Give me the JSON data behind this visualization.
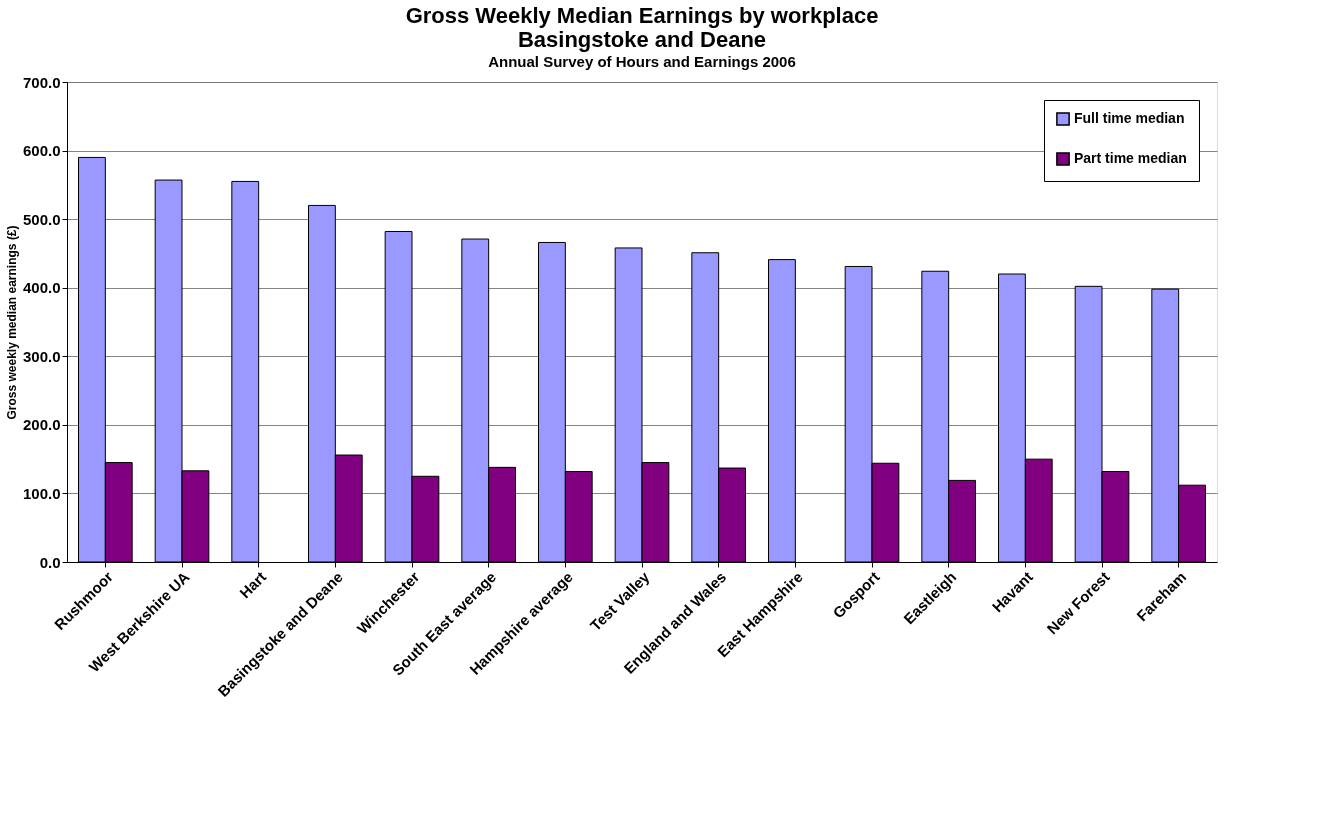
{
  "chart_data": {
    "type": "bar",
    "title": "Gross Weekly Median Earnings by workplace\nBasingstoke and Deane",
    "subtitle": "Annual Survey of Hours and Earnings 2006",
    "ylabel": "Gross weekly median earnings (£)",
    "categories": [
      "Rushmoor",
      "West Berkshire UA",
      "Hart",
      "Basingstoke and Deane",
      "Winchester",
      "South East average",
      "Hampshire average",
      "Test Valley",
      "England and Wales",
      "East Hampshire",
      "Gosport",
      "Eastleigh",
      "Havant",
      "New Forest",
      "Fareham"
    ],
    "series": [
      {
        "name": "Full time median",
        "color": "#9999ff",
        "values": [
          590,
          557,
          555,
          520,
          482,
          471,
          466,
          458,
          451,
          441,
          431,
          424,
          420,
          402,
          398
        ]
      },
      {
        "name": "Part time median",
        "color": "#800080",
        "values": [
          145,
          133,
          null,
          156,
          125,
          138,
          132,
          145,
          137,
          null,
          144,
          119,
          150,
          132,
          112
        ]
      }
    ],
    "ylim": [
      0,
      700
    ],
    "yticks": [
      {
        "value": 0,
        "label": "0.0"
      },
      {
        "value": 100,
        "label": "100.0"
      },
      {
        "value": 200,
        "label": "200.0"
      },
      {
        "value": 300,
        "label": "300.0"
      },
      {
        "value": 400,
        "label": "400.0"
      },
      {
        "value": 500,
        "label": "500.0"
      },
      {
        "value": 600,
        "label": "600.0"
      },
      {
        "value": 700,
        "label": "700.0"
      }
    ],
    "grid": "y",
    "legend": "top right"
  }
}
